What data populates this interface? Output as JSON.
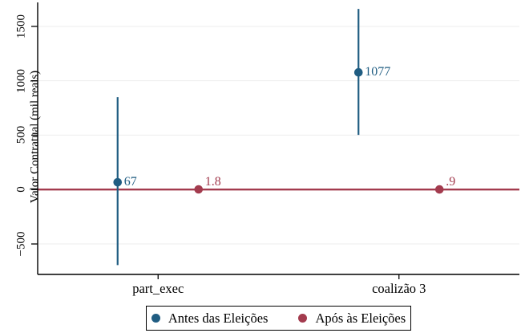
{
  "chart_data": {
    "type": "scatter",
    "subtype": "coefplot-with-ci",
    "title": "",
    "xlabel": "",
    "ylabel": "Valor Contratual (mil reais)",
    "categories": [
      "part_exec",
      "coalizão 3"
    ],
    "yticks": [
      -500,
      0,
      500,
      1000,
      1500
    ],
    "ylim": [
      -780,
      1720
    ],
    "refline_y": 0,
    "refline_color": "#a33b4e",
    "grid": true,
    "gridline_color": "#ededed",
    "axis_color": "#000000",
    "legend_position": "bottom-center",
    "series": [
      {
        "name": "Antes das Eleições",
        "color": "#205d82",
        "values": [
          67,
          1077
        ],
        "ci_low": [
          -694,
          502
        ],
        "ci_high": [
          849,
          1660
        ],
        "labels": [
          "67",
          "1077"
        ]
      },
      {
        "name": "Após às Eleições",
        "color": "#a33b4e",
        "values": [
          1.8,
          0.9
        ],
        "ci_low": [
          null,
          null
        ],
        "ci_high": [
          null,
          null
        ],
        "labels": [
          "1.8",
          ".9"
        ]
      }
    ]
  }
}
